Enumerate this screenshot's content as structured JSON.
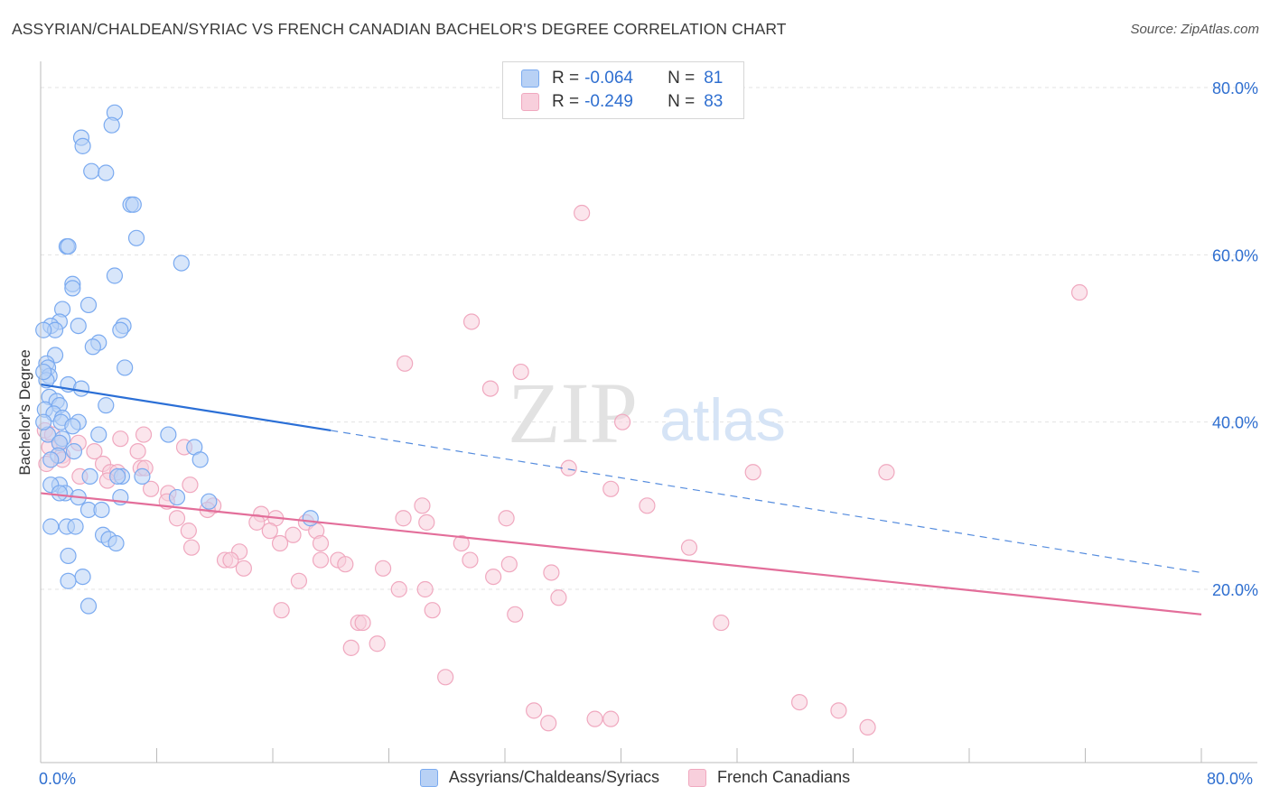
{
  "title": "ASSYRIAN/CHALDEAN/SYRIAC VS FRENCH CANADIAN BACHELOR'S DEGREE CORRELATION CHART",
  "source": "Source: ZipAtlas.com",
  "watermark": {
    "zip": "ZIP",
    "atlas": "atlas"
  },
  "legend_top": {
    "rows": [
      {
        "r_label": "R =",
        "r_value": "-0.064",
        "n_label": "N =",
        "n_value": "81"
      },
      {
        "r_label": "R =",
        "r_value": "-0.249",
        "n_label": "N =",
        "n_value": "83"
      }
    ]
  },
  "chart_data": {
    "type": "scatter",
    "title": "ASSYRIAN/CHALDEAN/SYRIAC VS FRENCH CANADIAN BACHELOR'S DEGREE CORRELATION CHART",
    "xlabel": "",
    "ylabel": "Bachelor's Degree",
    "xlim": [
      0,
      80
    ],
    "ylim": [
      0,
      80
    ],
    "x_tick_labels": [
      "0.0%",
      "80.0%"
    ],
    "y_tick_labels": [
      "20.0%",
      "40.0%",
      "60.0%",
      "80.0%"
    ],
    "y_ticks": [
      20,
      40,
      60,
      80
    ],
    "grid": true,
    "legend_position": "bottom",
    "series": [
      {
        "name": "Assyrians/Chaldeans/Syriacs",
        "color": "#7aaaf0",
        "fill": "#b8d1f5",
        "line_color": "#2b6fd6",
        "r": -0.064,
        "n": 81,
        "trend": {
          "x0": 0,
          "y0": 44.5,
          "x_solid_end": 20,
          "y_solid_end": 39.0,
          "x1": 80,
          "y1": 22.0
        },
        "points": [
          [
            5.1,
            77.0
          ],
          [
            4.9,
            75.5
          ],
          [
            2.8,
            74.0
          ],
          [
            2.9,
            73.0
          ],
          [
            3.5,
            70.0
          ],
          [
            4.5,
            69.8
          ],
          [
            6.2,
            66.0
          ],
          [
            6.4,
            66.0
          ],
          [
            6.6,
            62.0
          ],
          [
            1.8,
            61.0
          ],
          [
            1.9,
            61.0
          ],
          [
            9.7,
            59.0
          ],
          [
            5.1,
            57.5
          ],
          [
            2.2,
            56.5
          ],
          [
            2.2,
            56.0
          ],
          [
            3.3,
            54.0
          ],
          [
            1.5,
            53.5
          ],
          [
            1.3,
            52.0
          ],
          [
            0.7,
            51.5
          ],
          [
            1.0,
            51.0
          ],
          [
            2.6,
            51.5
          ],
          [
            5.7,
            51.5
          ],
          [
            5.5,
            51.0
          ],
          [
            4.0,
            49.5
          ],
          [
            3.6,
            49.0
          ],
          [
            1.0,
            48.0
          ],
          [
            0.4,
            47.0
          ],
          [
            0.5,
            46.5
          ],
          [
            5.8,
            46.5
          ],
          [
            0.6,
            45.5
          ],
          [
            0.4,
            45.0
          ],
          [
            1.9,
            44.5
          ],
          [
            2.8,
            44.0
          ],
          [
            0.6,
            43.0
          ],
          [
            1.1,
            42.5
          ],
          [
            1.3,
            42.0
          ],
          [
            4.5,
            42.0
          ],
          [
            0.3,
            41.5
          ],
          [
            0.9,
            41.0
          ],
          [
            1.5,
            40.5
          ],
          [
            1.4,
            40.0
          ],
          [
            2.6,
            40.0
          ],
          [
            2.2,
            39.5
          ],
          [
            0.5,
            38.5
          ],
          [
            4.0,
            38.5
          ],
          [
            8.8,
            38.5
          ],
          [
            1.5,
            38.0
          ],
          [
            1.3,
            37.5
          ],
          [
            10.6,
            37.0
          ],
          [
            2.3,
            36.5
          ],
          [
            1.2,
            36.0
          ],
          [
            0.7,
            35.5
          ],
          [
            11.0,
            35.5
          ],
          [
            3.4,
            33.5
          ],
          [
            5.6,
            33.5
          ],
          [
            5.3,
            33.5
          ],
          [
            7.0,
            33.5
          ],
          [
            1.3,
            32.5
          ],
          [
            0.7,
            32.5
          ],
          [
            1.7,
            31.5
          ],
          [
            1.3,
            31.5
          ],
          [
            2.6,
            31.0
          ],
          [
            5.5,
            31.0
          ],
          [
            9.4,
            31.0
          ],
          [
            11.6,
            30.5
          ],
          [
            3.3,
            29.5
          ],
          [
            4.2,
            29.5
          ],
          [
            18.6,
            28.5
          ],
          [
            0.7,
            27.5
          ],
          [
            1.8,
            27.5
          ],
          [
            2.4,
            27.5
          ],
          [
            4.3,
            26.5
          ],
          [
            4.7,
            26.0
          ],
          [
            5.2,
            25.5
          ],
          [
            1.9,
            24.0
          ],
          [
            2.9,
            21.5
          ],
          [
            1.9,
            21.0
          ],
          [
            3.3,
            18.0
          ],
          [
            0.2,
            40.0
          ],
          [
            0.2,
            46.0
          ],
          [
            0.2,
            51.0
          ]
        ]
      },
      {
        "name": "French Canadians",
        "color": "#f0a8bf",
        "fill": "#f8cfdc",
        "line_color": "#e36e9a",
        "r": -0.249,
        "n": 83,
        "trend": {
          "x0": 0,
          "y0": 31.5,
          "x1": 80,
          "y1": 17.0
        },
        "points": [
          [
            37.3,
            65.0
          ],
          [
            71.6,
            55.5
          ],
          [
            29.7,
            52.0
          ],
          [
            25.1,
            47.0
          ],
          [
            33.1,
            46.0
          ],
          [
            31.0,
            44.0
          ],
          [
            40.1,
            40.0
          ],
          [
            0.3,
            39.0
          ],
          [
            0.8,
            38.5
          ],
          [
            7.1,
            38.5
          ],
          [
            1.3,
            37.5
          ],
          [
            5.5,
            38.0
          ],
          [
            0.6,
            37.0
          ],
          [
            2.6,
            37.5
          ],
          [
            3.7,
            36.5
          ],
          [
            1.5,
            36.0
          ],
          [
            1.5,
            35.5
          ],
          [
            6.7,
            36.5
          ],
          [
            9.9,
            37.0
          ],
          [
            0.4,
            35.0
          ],
          [
            4.3,
            35.0
          ],
          [
            6.9,
            34.5
          ],
          [
            7.2,
            34.5
          ],
          [
            4.8,
            34.0
          ],
          [
            5.3,
            34.0
          ],
          [
            36.4,
            34.5
          ],
          [
            49.1,
            34.0
          ],
          [
            58.3,
            34.0
          ],
          [
            2.7,
            33.5
          ],
          [
            4.6,
            33.0
          ],
          [
            10.3,
            32.5
          ],
          [
            7.6,
            32.0
          ],
          [
            39.3,
            32.0
          ],
          [
            8.8,
            31.5
          ],
          [
            8.7,
            30.5
          ],
          [
            11.9,
            30.0
          ],
          [
            26.3,
            30.0
          ],
          [
            41.8,
            30.0
          ],
          [
            11.5,
            29.5
          ],
          [
            15.2,
            29.0
          ],
          [
            9.4,
            28.5
          ],
          [
            16.2,
            28.5
          ],
          [
            25.0,
            28.5
          ],
          [
            32.1,
            28.5
          ],
          [
            14.9,
            28.0
          ],
          [
            18.3,
            28.0
          ],
          [
            26.6,
            28.0
          ],
          [
            10.2,
            27.0
          ],
          [
            15.8,
            27.0
          ],
          [
            17.4,
            26.5
          ],
          [
            19.0,
            27.0
          ],
          [
            16.5,
            25.5
          ],
          [
            19.3,
            25.5
          ],
          [
            29.0,
            25.5
          ],
          [
            44.7,
            25.0
          ],
          [
            10.4,
            25.0
          ],
          [
            13.7,
            24.5
          ],
          [
            12.7,
            23.5
          ],
          [
            13.1,
            23.5
          ],
          [
            19.3,
            23.5
          ],
          [
            20.5,
            23.5
          ],
          [
            29.6,
            23.5
          ],
          [
            32.3,
            23.0
          ],
          [
            21.0,
            23.0
          ],
          [
            14.0,
            22.5
          ],
          [
            23.6,
            22.5
          ],
          [
            35.2,
            22.0
          ],
          [
            17.8,
            21.0
          ],
          [
            31.2,
            21.5
          ],
          [
            24.7,
            20.0
          ],
          [
            26.5,
            20.0
          ],
          [
            35.7,
            19.0
          ],
          [
            16.6,
            17.5
          ],
          [
            27.0,
            17.5
          ],
          [
            32.7,
            17.0
          ],
          [
            21.9,
            16.0
          ],
          [
            22.2,
            16.0
          ],
          [
            46.9,
            16.0
          ],
          [
            21.4,
            13.0
          ],
          [
            23.2,
            13.5
          ],
          [
            27.9,
            9.5
          ],
          [
            52.3,
            6.5
          ],
          [
            55.0,
            5.5
          ]
        ]
      }
    ],
    "extra_points_french": [
      [
        34.0,
        5.5
      ],
      [
        35.0,
        4.0
      ],
      [
        38.2,
        4.5
      ],
      [
        39.3,
        4.5
      ],
      [
        57.0,
        3.5
      ]
    ]
  },
  "legend_bottom": {
    "items": [
      {
        "label": "Assyrians/Chaldeans/Syriacs"
      },
      {
        "label": "French Canadians"
      }
    ]
  }
}
